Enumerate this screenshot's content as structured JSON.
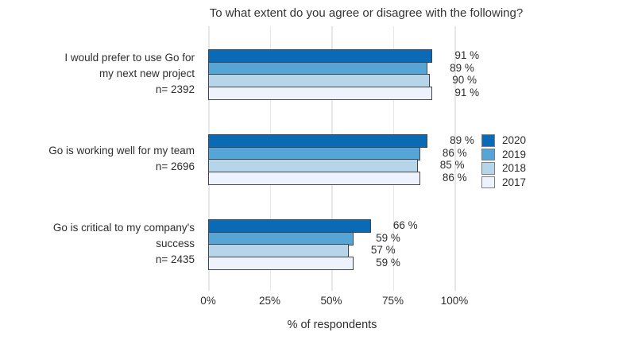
{
  "chart_data": {
    "type": "bar",
    "orientation": "horizontal",
    "title": "To what extent do you agree or disagree with the following?",
    "xlabel": "% of respondents",
    "value_suffix": " %",
    "x_axis": {
      "ticks": [
        0,
        25,
        50,
        75,
        100
      ],
      "tick_suffix": "%",
      "range": [
        0,
        100
      ],
      "grid": true
    },
    "legend_position": "right",
    "series": [
      {
        "name": "2020",
        "color": "#0a6ab6"
      },
      {
        "name": "2019",
        "color": "#55a6d7"
      },
      {
        "name": "2018",
        "color": "#b7d5e9"
      },
      {
        "name": "2017",
        "color": "#edf2fc"
      }
    ],
    "groups": [
      {
        "label_lines": [
          "I would prefer to use Go for",
          "my next new project",
          "n= 2392"
        ],
        "n": 2392,
        "values": [
          91,
          89,
          90,
          91
        ]
      },
      {
        "label_lines": [
          "Go is working well for my team",
          "n= 2696"
        ],
        "n": 2696,
        "values": [
          89,
          86,
          85,
          86
        ]
      },
      {
        "label_lines": [
          "Go is critical to my company's",
          "success",
          "n= 2435"
        ],
        "n": 2435,
        "values": [
          66,
          59,
          57,
          59
        ]
      }
    ]
  },
  "colors": {
    "bar_border": "#40464e",
    "legend_border": "#7c8188",
    "gridline": "#e7e7e7",
    "text": "#2e2e2e"
  }
}
